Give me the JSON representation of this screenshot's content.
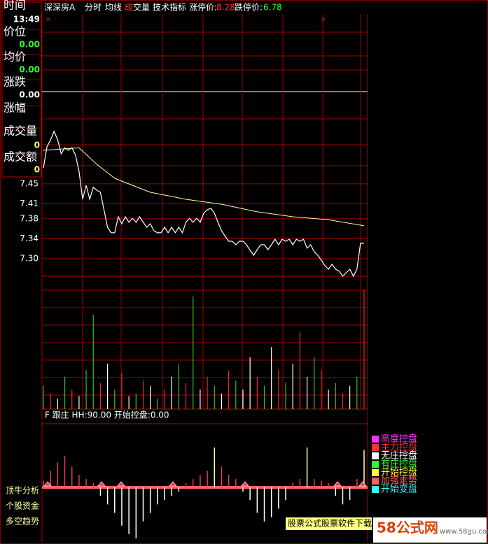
{
  "header": {
    "stock": "深深房A",
    "items": [
      "分时",
      "均线"
    ],
    "vol_a": "成",
    "vol_b": "交量",
    "tech": "技术指标",
    "limit_up_label": "涨停价:",
    "limit_up": "8.28",
    "limit_down_label": "跌停价:",
    "limit_down": "6.78"
  },
  "info": [
    {
      "label": "时间",
      "value": "13:49"
    },
    {
      "label": "价位",
      "value": "0.00"
    },
    {
      "label": "均价",
      "value": "0.00"
    },
    {
      "label": "涨跌",
      "value": "0.00"
    },
    {
      "label": "涨幅",
      "value": ""
    },
    {
      "label": "成交量",
      "value": "0"
    },
    {
      "label": "成交额",
      "value": "0"
    }
  ],
  "price": {
    "ylim": [
      7.265,
      7.79
    ],
    "yticks": [
      7.45,
      7.41,
      7.38,
      7.34,
      {
        "value": 7.3,
        "label": "7.30"
      }
    ],
    "values": [
      7.482,
      7.524,
      7.538,
      7.555,
      7.538,
      7.51,
      7.522,
      7.517,
      7.522,
      7.508,
      7.475,
      7.419,
      7.447,
      7.419,
      7.443,
      7.437,
      7.433,
      7.398,
      7.363,
      7.352,
      7.352,
      7.384,
      7.37,
      7.384,
      7.373,
      7.381,
      7.373,
      7.384,
      7.373,
      7.363,
      7.37,
      7.356,
      7.352,
      7.352,
      7.363,
      7.352,
      7.363,
      7.352,
      7.363,
      7.352,
      7.373,
      7.381,
      7.373,
      7.381,
      7.373,
      7.391,
      7.398,
      7.401,
      7.391,
      7.373,
      7.356,
      7.345,
      7.335,
      7.335,
      7.328,
      7.335,
      7.335,
      7.328,
      7.317,
      7.307,
      7.318,
      7.328,
      7.328,
      7.318,
      7.328,
      7.339,
      7.328,
      7.339,
      7.335,
      7.339,
      7.328,
      7.339,
      7.335,
      7.339,
      7.321,
      7.328,
      7.314,
      7.307,
      7.297,
      7.286,
      7.279,
      7.289,
      7.279,
      7.275,
      7.265,
      7.272,
      7.279,
      7.265,
      7.279,
      7.331,
      7.331
    ],
    "avg": {
      "x": [
        0,
        10,
        15,
        20,
        30,
        40,
        50,
        60,
        70,
        80,
        90
      ],
      "values": [
        7.517,
        7.522,
        7.489,
        7.461,
        7.433,
        7.419,
        7.409,
        7.394,
        7.384,
        7.378,
        7.366
      ]
    }
  },
  "volume": {
    "ylim": [
      0,
      100
    ],
    "values": [
      18,
      12,
      8,
      25,
      15,
      10,
      30,
      73,
      20,
      35,
      15,
      28,
      10,
      12,
      22,
      18,
      8,
      15,
      25,
      35,
      20,
      87,
      15,
      25,
      18,
      12,
      30,
      22,
      15,
      40,
      25,
      18,
      48,
      30,
      20,
      35,
      60,
      25,
      40,
      30,
      15,
      20,
      12,
      18,
      25,
      92
    ],
    "colors": [
      "#30c030",
      "#e03030",
      "#ffffff",
      "#30c030",
      "#e03030",
      "#ffffff",
      "#30c030",
      "#30c030",
      "#e03030",
      "#ffffff",
      "#30c030",
      "#e03030",
      "#ffffff",
      "#30c030",
      "#e03030",
      "#ffffff",
      "#30c030",
      "#e03030",
      "#ffffff",
      "#30c030",
      "#e03030",
      "#30c030",
      "#ffffff",
      "#e03030",
      "#30c030",
      "#ffffff",
      "#e03030",
      "#30c030",
      "#ffffff",
      "#ffffff",
      "#e03030",
      "#30c030",
      "#ffffff",
      "#e03030",
      "#30c030",
      "#ffffff",
      "#e03030",
      "#ffffff",
      "#30c030",
      "#e03030",
      "#ffffff",
      "#30c030",
      "#e03030",
      "#ffffff",
      "#30c030",
      "#e03030"
    ]
  },
  "indicator": {
    "title": "F 跟庄  HH:90.00  开始控盘:0.00",
    "ylim": [
      -60,
      48
    ],
    "values": [
      8,
      20,
      30,
      38,
      25,
      15,
      10,
      5,
      -10,
      -20,
      -30,
      -45,
      -55,
      -60,
      -40,
      -30,
      -20,
      -15,
      -10,
      -5,
      5,
      10,
      15,
      20,
      48,
      25,
      15,
      10,
      -5,
      -15,
      -30,
      -40,
      -35,
      -25,
      -15,
      5,
      10,
      48,
      10,
      8,
      5,
      -10,
      -20,
      -15,
      10,
      45
    ]
  },
  "legend": [
    {
      "label": "高度控盘",
      "color": "#ff30ff"
    },
    {
      "label": "主力控盘",
      "color": "#ff3030"
    },
    {
      "label": "无庄控盘",
      "color": "#ffffff"
    },
    {
      "label": "有庄控盘",
      "color": "#30ff30"
    },
    {
      "label": "开始控盘",
      "color": "#ffff30"
    },
    {
      "label": "加强走势",
      "color": "#ff6060"
    },
    {
      "label": "开始变盘",
      "color": "#30ffff"
    }
  ],
  "side_labels": [
    "顶牛分析",
    "个股资金",
    "多空趋势"
  ],
  "banner": "股票公式股票软件下载",
  "watermark": {
    "brand": "58公式网",
    "url": "www.58gu.com"
  }
}
